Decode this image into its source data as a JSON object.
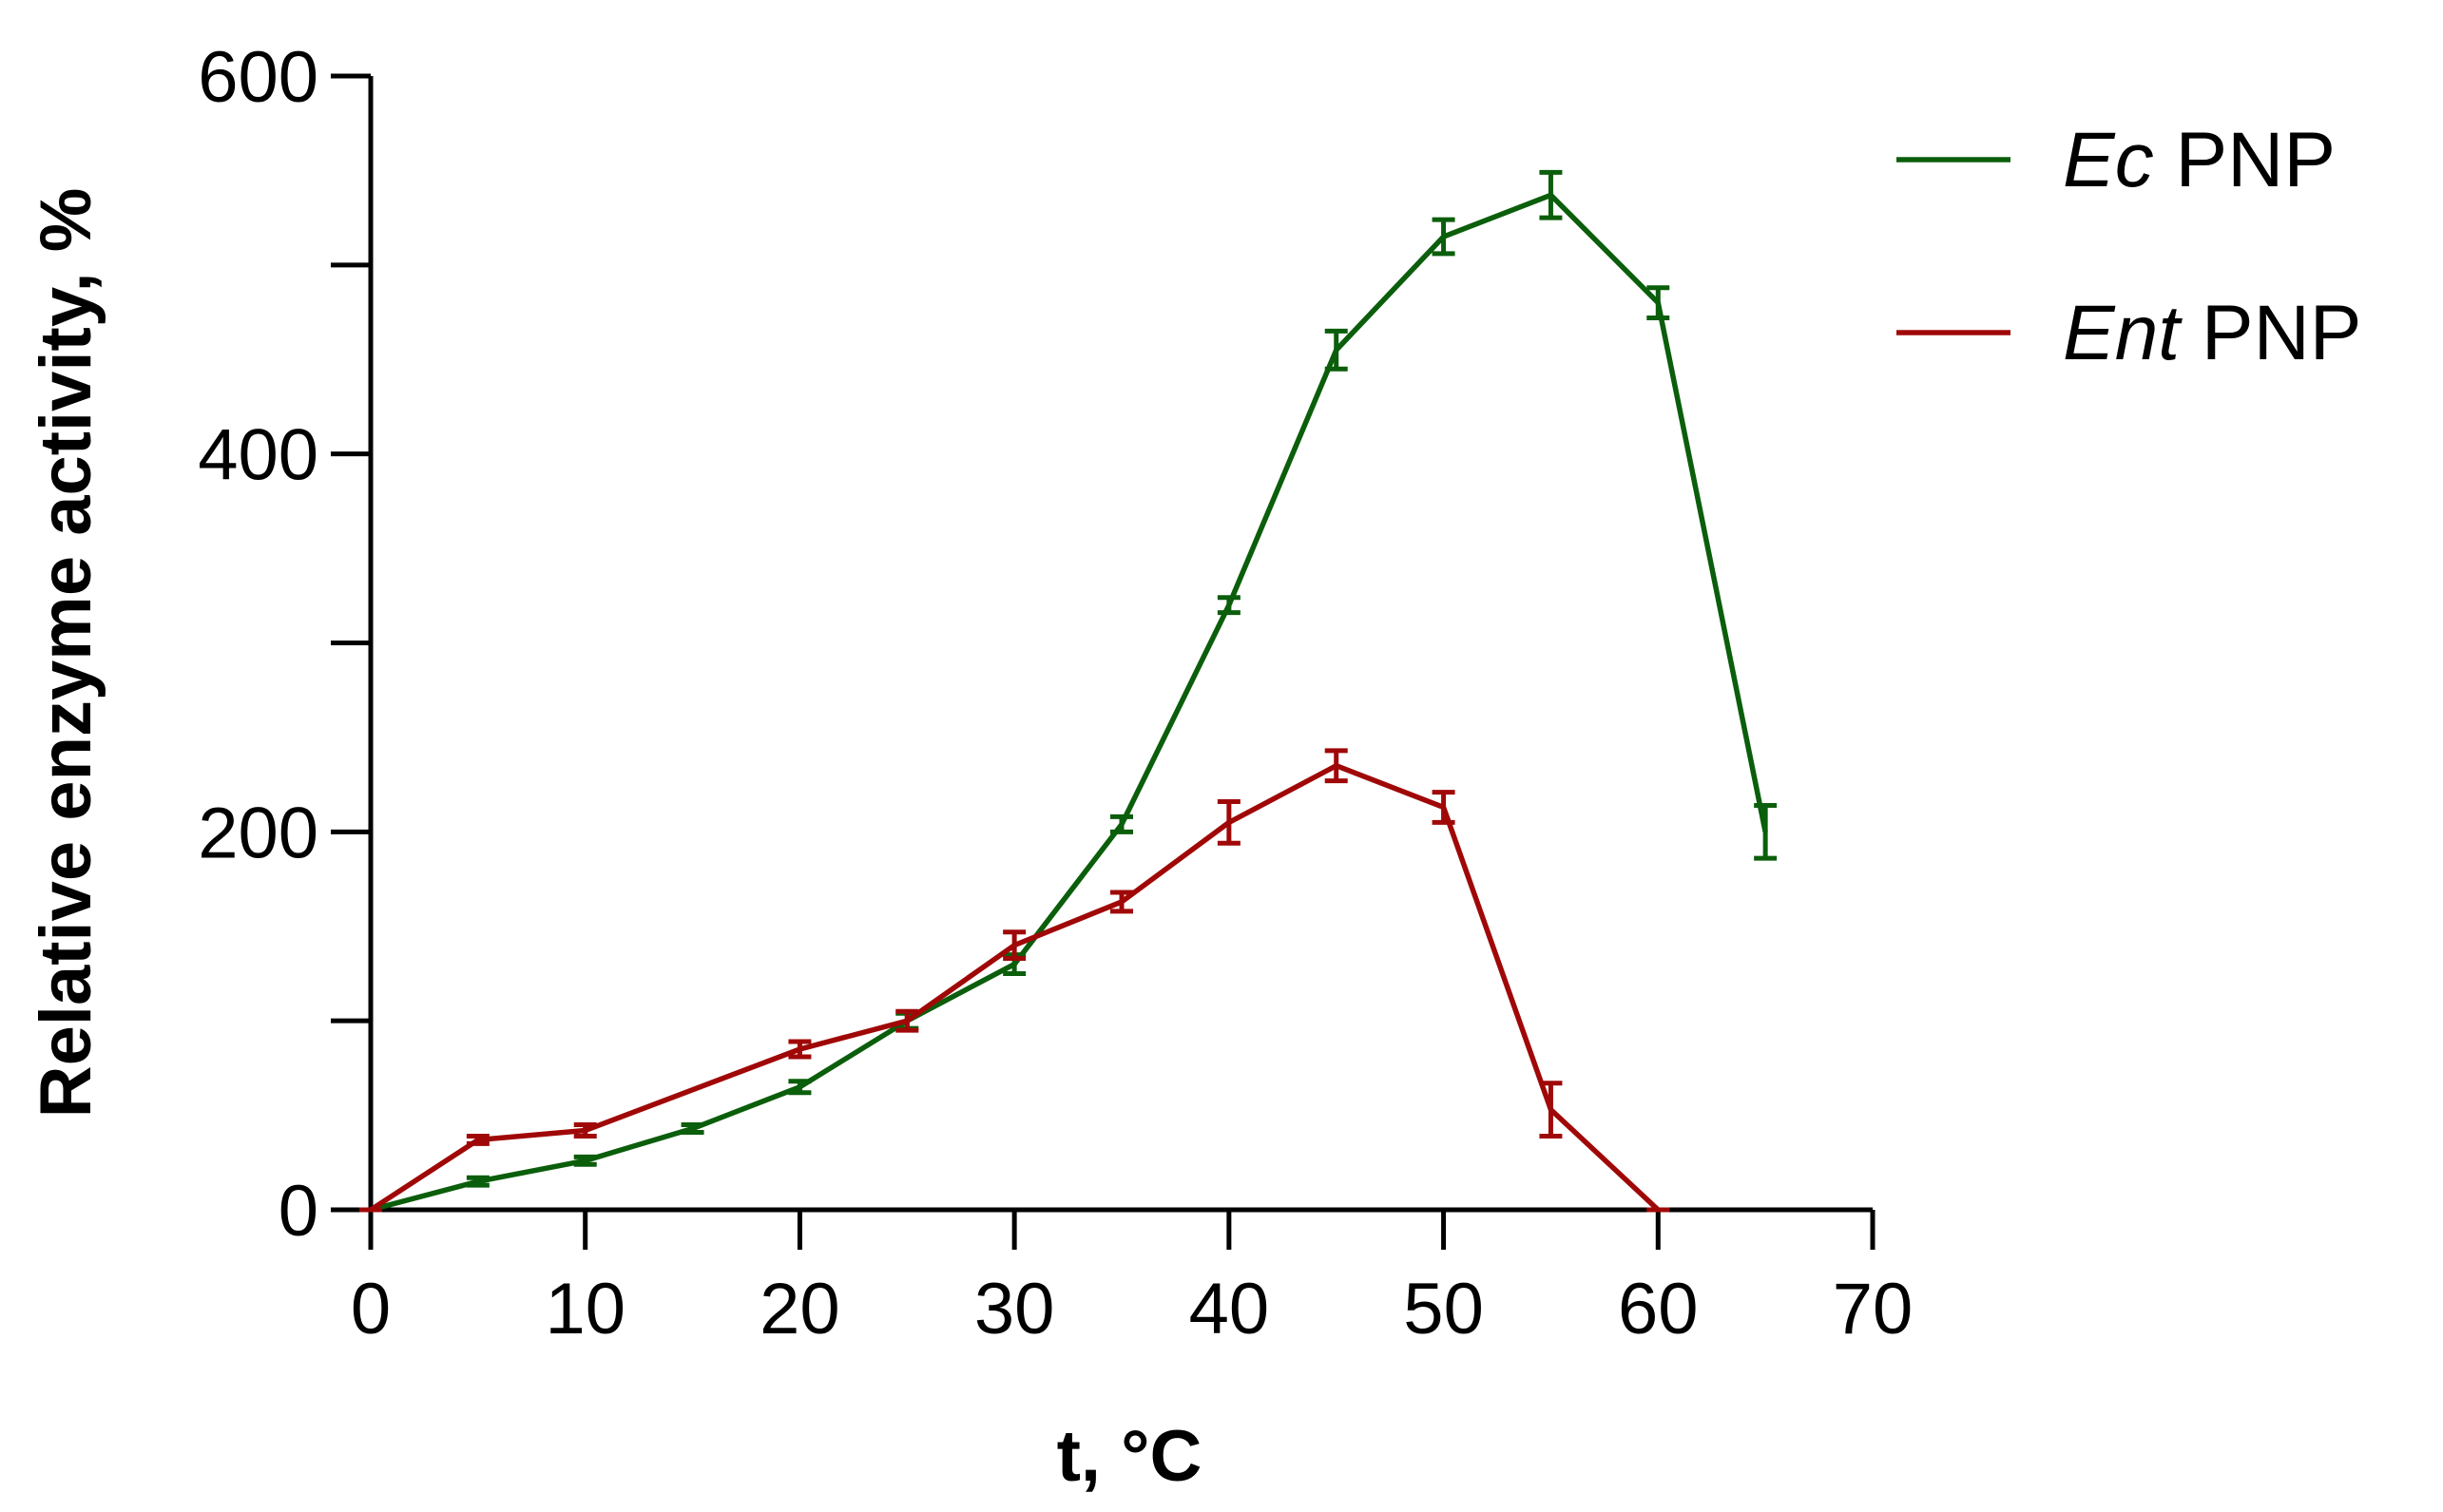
{
  "chart_data": {
    "type": "line",
    "title": "",
    "xlabel": "t, °C",
    "ylabel": "Relative enzyme activity, %",
    "xlim": [
      0,
      70
    ],
    "ylim": [
      0,
      600
    ],
    "xticks": [
      0,
      10,
      20,
      30,
      40,
      50,
      60,
      70
    ],
    "yticks_labeled": [
      0,
      200,
      400,
      600
    ],
    "yticks_minor": [
      100,
      300,
      500
    ],
    "grid": false,
    "legend_position": "top-right",
    "series": [
      {
        "name": "Ec PNP",
        "name_italic": "Ec",
        "name_rest": " PNP",
        "color": "#0b5e0b",
        "x": [
          0,
          5,
          10,
          15,
          20,
          25,
          30,
          35,
          40,
          45,
          50,
          55,
          60,
          65
        ],
        "values": [
          0,
          15,
          26,
          43,
          65,
          100,
          130,
          204,
          320,
          455,
          515,
          537,
          480,
          200
        ],
        "errors": [
          0,
          2,
          2,
          2,
          3,
          4,
          5,
          4,
          4,
          10,
          9,
          12,
          8,
          14
        ]
      },
      {
        "name": "Ent PNP",
        "name_italic": "Ent",
        "name_rest": " PNP",
        "color": "#a00808",
        "x": [
          0,
          5,
          10,
          20,
          25,
          30,
          35,
          40,
          45,
          50,
          55,
          60
        ],
        "values": [
          0,
          37,
          42,
          85,
          100,
          140,
          163,
          205,
          235,
          213,
          53,
          0
        ],
        "errors": [
          0,
          2,
          3,
          4,
          5,
          7,
          5,
          11,
          8,
          8,
          14,
          0
        ]
      }
    ]
  }
}
